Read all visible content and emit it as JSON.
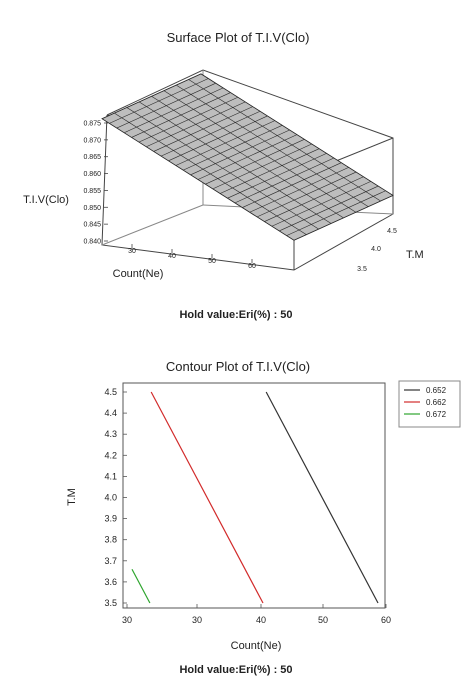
{
  "surface": {
    "title": "Surface Plot of T.I.V(Clo)",
    "xlabel": "Count(Ne)",
    "ylabel": "T.M",
    "zlabel": "T.I.V(Clo)",
    "hold_value": "Hold value:Eri(%) : 50",
    "x_ticks": [
      "30",
      "40",
      "50",
      "60"
    ],
    "y_ticks": [
      "3.5",
      "4.0",
      "4.5"
    ],
    "z_ticks": [
      "0.875",
      "0.870",
      "0.865",
      "0.860",
      "0.855",
      "0.850",
      "0.845",
      "0.840"
    ]
  },
  "contour": {
    "title": "Contour Plot of T.I.V(Clo)",
    "xlabel": "Count(Ne)",
    "ylabel": "T.M",
    "hold_value": "Hold value:Eri(%) : 50",
    "x_ticks": [
      "30",
      "30",
      "40",
      "50",
      "60"
    ],
    "y_ticks": [
      "4.5",
      "4.4",
      "4.3",
      "4.2",
      "4.1",
      "4.0",
      "3.9",
      "3.8",
      "3.7",
      "3.6",
      "3.5"
    ],
    "legend": [
      {
        "label": "0.652",
        "color": "#333333"
      },
      {
        "label": "0.662",
        "color": "#d22b2b"
      },
      {
        "label": "0.672",
        "color": "#2ea52e"
      }
    ]
  },
  "chart_data": [
    {
      "type": "surface",
      "title": "Surface Plot of T.I.V(Clo)",
      "xlabel": "Count(Ne)",
      "ylabel": "T.M",
      "zlabel": "T.I.V(Clo)",
      "xlim": [
        20,
        60
      ],
      "ylim": [
        3.5,
        4.5
      ],
      "zlim": [
        0.84,
        0.875
      ],
      "corners": [
        {
          "x": 20,
          "y": 3.5,
          "z": 0.874
        },
        {
          "x": 60,
          "y": 3.5,
          "z": 0.848
        },
        {
          "x": 60,
          "y": 4.5,
          "z": 0.845
        },
        {
          "x": 20,
          "y": 4.5,
          "z": 0.871
        }
      ],
      "hold_value": "Hold value:Eri(%) : 50"
    },
    {
      "type": "contour",
      "title": "Contour Plot of T.I.V(Clo)",
      "xlabel": "Count(Ne)",
      "ylabel": "T.M",
      "xlim": [
        20,
        60
      ],
      "ylim": [
        3.5,
        4.5
      ],
      "series": [
        {
          "name": "0.652",
          "color": "#333333",
          "points": [
            [
              41,
              4.5
            ],
            [
              58.5,
              3.5
            ]
          ]
        },
        {
          "name": "0.662",
          "color": "#d22b2b",
          "points": [
            [
              23,
              4.5
            ],
            [
              40.5,
              3.5
            ]
          ]
        },
        {
          "name": "0.672",
          "color": "#2ea52e",
          "points": [
            [
              20,
              3.66
            ],
            [
              22.8,
              3.5
            ]
          ]
        }
      ],
      "hold_value": "Hold value:Eri(%) : 50"
    }
  ]
}
